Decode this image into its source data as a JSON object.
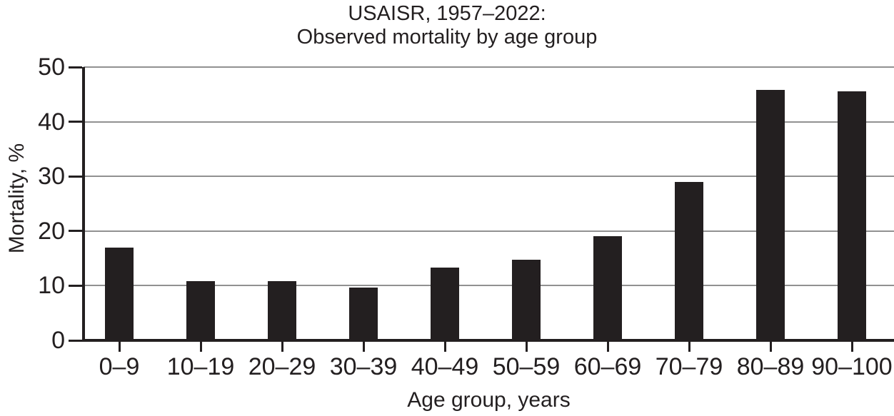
{
  "title": {
    "line1": "USAISR, 1957–2022:",
    "line2": "Observed mortality by age group"
  },
  "chart_data": {
    "type": "bar",
    "title": "USAISR, 1957–2022: Observed mortality by age group",
    "categories": [
      "0–9",
      "10–19",
      "20–29",
      "30–39",
      "40–49",
      "50–59",
      "60–69",
      "70–79",
      "80–89",
      "90–100"
    ],
    "values": [
      17,
      10.8,
      10.8,
      9.6,
      13.3,
      14.7,
      19,
      29,
      45.8,
      45.5
    ],
    "xlabel": "Age group, years",
    "ylabel": "Mortality, %",
    "ylim": [
      0,
      50
    ],
    "yticks": [
      0,
      10,
      20,
      30,
      40,
      50
    ],
    "grid": "horizontal-gray-at-each-ytick",
    "legend": "none",
    "bar_color": "#231f20",
    "axis_color": "#231f20",
    "gridline_color": "#919191",
    "text_color": "#231f20"
  }
}
